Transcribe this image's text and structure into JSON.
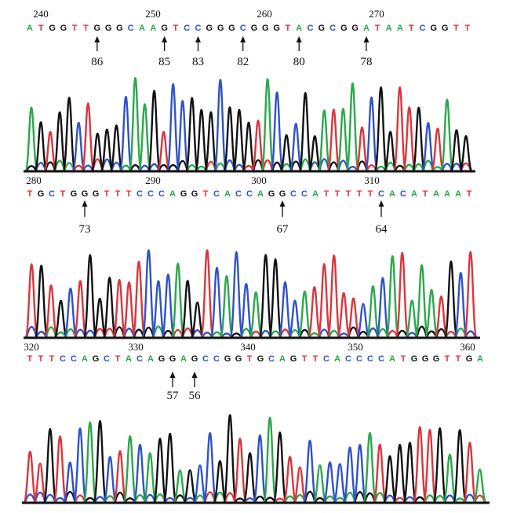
{
  "colors": {
    "A": "#2aa84a",
    "C": "#2f52c8",
    "G": "#111111",
    "T": "#d9363e"
  },
  "panels": [
    {
      "position_labels": [
        "240",
        "250",
        "260",
        "270"
      ],
      "bases": "ATGGTTGGGCAAGTCCGGGCGGGTACGCGGATAATCGGTT",
      "markers": [
        {
          "label": "86",
          "base_index": 6
        },
        {
          "label": "85",
          "base_index": 12
        },
        {
          "label": "83",
          "base_index": 15
        },
        {
          "label": "82",
          "base_index": 19
        },
        {
          "label": "80",
          "base_index": 24
        },
        {
          "label": "78",
          "base_index": 30
        }
      ],
      "trace_sequence": "AGTGGCTGGGCAAGTCCGGGCGGGTACGCGGATAATCGGTTGCTAGG"
    },
    {
      "position_labels": [
        "280",
        "290",
        "300",
        "310"
      ],
      "bases": "TGCTGGGTTTCCCAGGTCACCAGGCCATTTTTCACATAAAT",
      "markers": [
        {
          "label": "73",
          "base_index": 5
        },
        {
          "label": "67",
          "base_index": 23
        },
        {
          "label": "64",
          "base_index": 32
        }
      ],
      "trace_sequence": "TGTGCTGGGTTTCCCAGGTCACCAGGCCATTTTTCACATAAATGCT"
    },
    {
      "position_labels": [
        "320",
        "330",
        "340",
        "350",
        "360"
      ],
      "bases": "TTTCCAGCTACAGGAGCCGGTGCAGTTCACCCCATGGGTTGA",
      "markers": [
        {
          "label": "57",
          "base_index": 13
        },
        {
          "label": "56",
          "base_index": 15
        }
      ],
      "trace_sequence": "TTGTCCAGCTACAGGAGCCGGTGCAGTTCACCCCATGGGTTGAGTA"
    }
  ]
}
